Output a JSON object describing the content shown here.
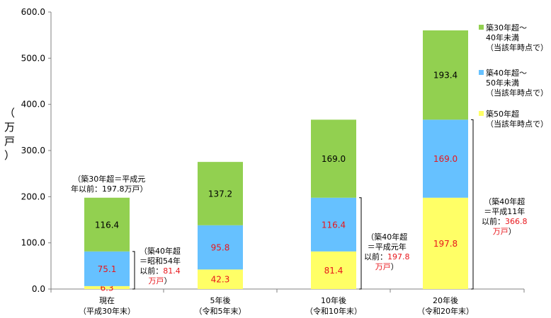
{
  "chart_data": {
    "type": "bar",
    "stacked": true,
    "categories": [
      {
        "line1": "現在",
        "line2": "（平成30年末）"
      },
      {
        "line1": "5年後",
        "line2": "（令和5年末）"
      },
      {
        "line1": "10年後",
        "line2": "（令和10年末）"
      },
      {
        "line1": "20年後",
        "line2": "（令和20年末）"
      }
    ],
    "series": [
      {
        "name_lines": [
          "築50年超",
          "（当該年時点で）"
        ],
        "color": "#ffff66",
        "label_color": "#e8161b",
        "values": [
          6.3,
          42.3,
          81.4,
          197.8
        ],
        "labels": [
          "6.3",
          "42.3",
          "81.4",
          "197.8"
        ]
      },
      {
        "name_lines": [
          "築40年超～",
          "50年未満",
          "（当該年時点で）"
        ],
        "color": "#66c1ff",
        "label_color": "#e8161b",
        "values": [
          75.1,
          95.8,
          116.4,
          169.0
        ],
        "labels": [
          "75.1",
          "95.8",
          "116.4",
          "169.0"
        ]
      },
      {
        "name_lines": [
          "築30年超～",
          "40年未満",
          "（当該年時点で）"
        ],
        "color": "#92d050",
        "label_color": "#000000",
        "values": [
          116.4,
          137.2,
          169.0,
          193.4
        ],
        "labels": [
          "116.4",
          "137.2",
          "169.0",
          "193.4"
        ]
      }
    ],
    "ylabel_chars": [
      "（",
      "万",
      "戸",
      "）"
    ],
    "ylim": [
      0,
      600
    ],
    "yticks": [
      "0.0",
      "100.0",
      "200.0",
      "300.0",
      "400.0",
      "500.0",
      "600.0"
    ],
    "grid": false,
    "legend_position": "right",
    "annotations": [
      {
        "lines": [
          [
            {
              "t": "（築30年超＝平成元"
            }
          ],
          [
            {
              "t": "年以前：197.8万戸）"
            }
          ]
        ]
      },
      {
        "lines": [
          [
            {
              "t": "（築40年超"
            }
          ],
          [
            {
              "t": "＝昭和54年"
            }
          ],
          [
            {
              "t": "以前："
            },
            {
              "t": "81.4",
              "red": true
            }
          ],
          [
            {
              "t": "万戸",
              "red": true
            },
            {
              "t": "）"
            }
          ]
        ]
      },
      {
        "lines": [
          [
            {
              "t": "（築40年超"
            }
          ],
          [
            {
              "t": "＝平成元年"
            }
          ],
          [
            {
              "t": "以前："
            },
            {
              "t": "197.8",
              "red": true
            }
          ],
          [
            {
              "t": "万戸",
              "red": true
            },
            {
              "t": "）"
            }
          ]
        ]
      },
      {
        "lines": [
          [
            {
              "t": "（築40年超"
            }
          ],
          [
            {
              "t": "＝平成11年"
            }
          ],
          [
            {
              "t": "以前："
            },
            {
              "t": "366.8",
              "red": true
            }
          ],
          [
            {
              "t": "万戸",
              "red": true
            },
            {
              "t": "）"
            }
          ]
        ]
      }
    ]
  }
}
